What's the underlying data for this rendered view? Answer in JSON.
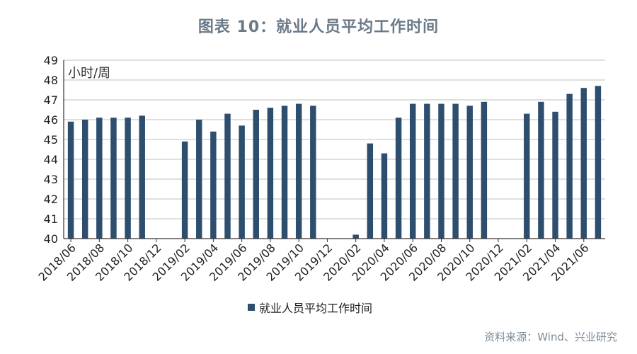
{
  "title": "图表 10：就业人员平均工作时间",
  "source": "资料来源：Wind、兴业研究",
  "chart_data": {
    "type": "bar",
    "unit_label": "小时/周",
    "ylim": [
      40,
      49
    ],
    "yticks": [
      40,
      41,
      42,
      43,
      44,
      45,
      46,
      47,
      48,
      49
    ],
    "grid": true,
    "legend_position": "bottom",
    "color": "#2e4e6e",
    "series": [
      {
        "name": "就业人员平均工作时间",
        "values": [
          45.9,
          46.0,
          46.1,
          46.1,
          46.1,
          46.2,
          null,
          null,
          44.9,
          46.0,
          45.4,
          46.3,
          45.7,
          46.5,
          46.6,
          46.7,
          46.8,
          46.7,
          null,
          null,
          40.2,
          44.8,
          44.3,
          46.1,
          46.8,
          46.8,
          46.8,
          46.8,
          46.7,
          46.9,
          null,
          null,
          46.3,
          46.9,
          46.4,
          47.3,
          47.6,
          47.7
        ]
      }
    ],
    "categories": [
      "2018/06",
      "2018/07",
      "2018/08",
      "2018/09",
      "2018/10",
      "2018/11",
      "2018/12",
      "2019/01",
      "2019/02",
      "2019/03",
      "2019/04",
      "2019/05",
      "2019/06",
      "2019/07",
      "2019/08",
      "2019/09",
      "2019/10",
      "2019/11",
      "2019/12",
      "2020/01",
      "2020/02",
      "2020/03",
      "2020/04",
      "2020/05",
      "2020/06",
      "2020/07",
      "2020/08",
      "2020/09",
      "2020/10",
      "2020/11",
      "2020/12",
      "2021/01",
      "2021/02",
      "2021/03",
      "2021/04",
      "2021/05",
      "2021/06",
      "2021/07"
    ],
    "xtick_labels": [
      "2018/06",
      "2018/08",
      "2018/10",
      "2018/12",
      "2019/02",
      "2019/04",
      "2019/06",
      "2019/08",
      "2019/10",
      "2019/12",
      "2020/02",
      "2020/04",
      "2020/06",
      "2020/08",
      "2020/10",
      "2020/12",
      "2021/02",
      "2021/04",
      "2021/06"
    ]
  }
}
